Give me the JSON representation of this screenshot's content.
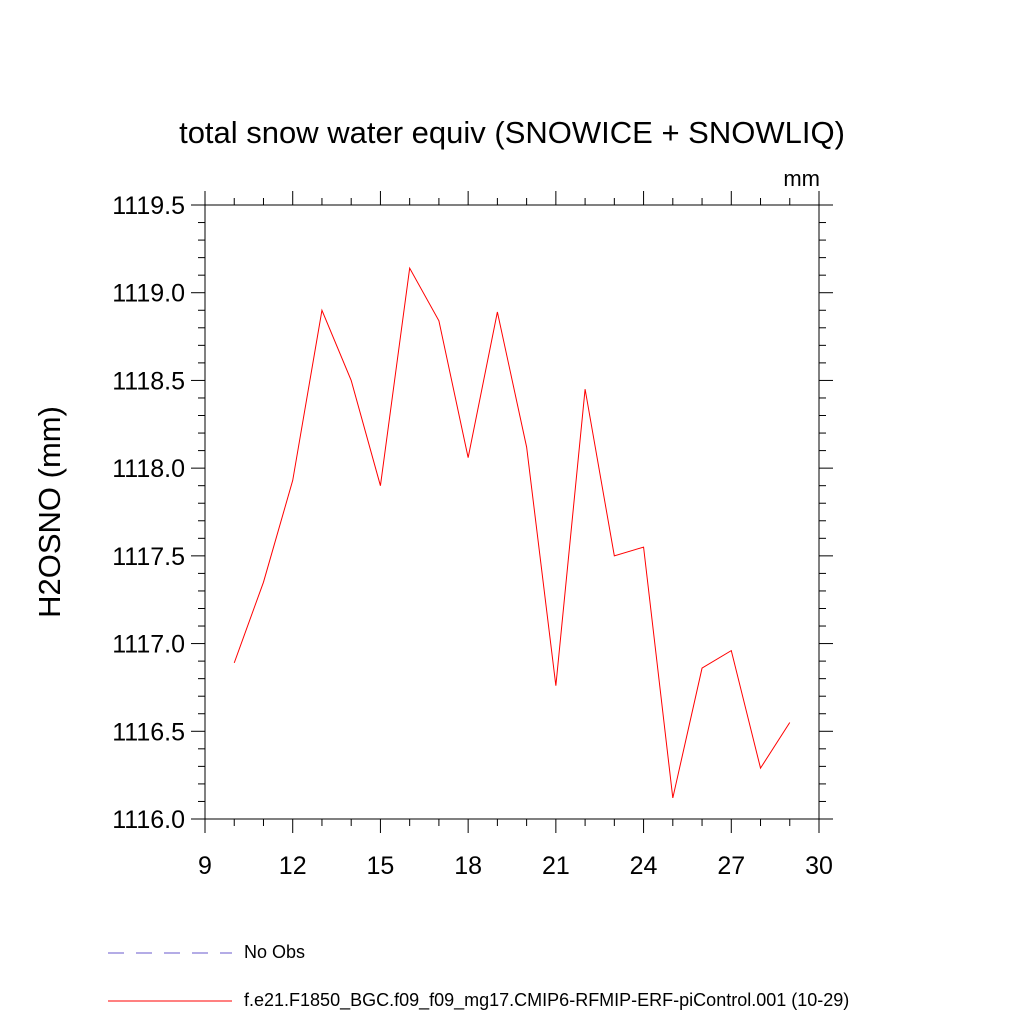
{
  "chart_data": {
    "type": "line",
    "title": "total snow water equiv (SNOWICE + SNOWLIQ)",
    "units_label": "mm",
    "ylabel": "H2OSNO  (mm)",
    "xlabel": "",
    "xlim": [
      9,
      30
    ],
    "ylim": [
      1116.0,
      1119.5
    ],
    "x_ticks": [
      9,
      12,
      15,
      18,
      21,
      24,
      27,
      30
    ],
    "y_ticks": [
      "1116.0",
      "1116.5",
      "1117.0",
      "1117.5",
      "1118.0",
      "1118.5",
      "1119.0",
      "1119.5"
    ],
    "grid": false,
    "series": [
      {
        "name": "f.e21.F1850_BGC.f09_f09_mg17.CMIP6-RFMIP-ERF-piControl.001 (10-29)",
        "color": "#ff0000",
        "x": [
          10,
          11,
          12,
          13,
          14,
          15,
          16,
          17,
          18,
          19,
          20,
          21,
          22,
          23,
          24,
          25,
          26,
          27,
          28,
          29
        ],
        "y": [
          1116.89,
          1117.35,
          1117.93,
          1118.9,
          1118.5,
          1117.9,
          1119.14,
          1118.84,
          1118.06,
          1118.89,
          1118.12,
          1116.76,
          1118.45,
          1117.5,
          1117.55,
          1116.12,
          1116.86,
          1116.96,
          1116.29,
          1116.55
        ]
      }
    ],
    "legend": {
      "placement": "bottom-left",
      "entries": [
        {
          "label": "No Obs",
          "color": "#6a5acd",
          "dash": "dashed"
        },
        {
          "label": "f.e21.F1850_BGC.f09_f09_mg17.CMIP6-RFMIP-ERF-piControl.001 (10-29)",
          "color": "#ff0000",
          "dash": "solid"
        }
      ]
    }
  }
}
